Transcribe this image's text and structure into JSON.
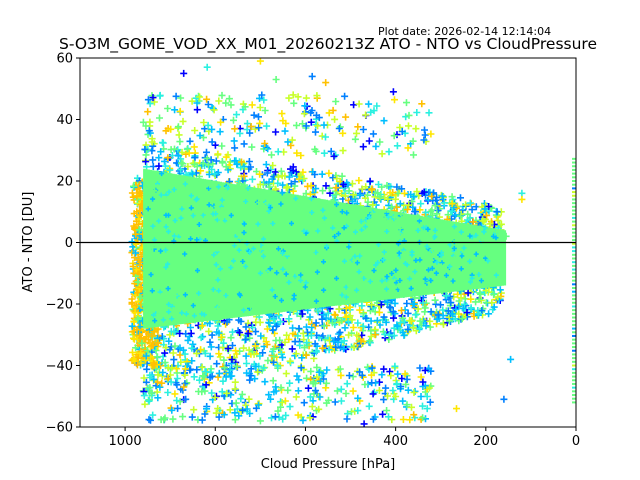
{
  "chart_data": {
    "type": "scatter",
    "title": "S-O3M_GOME_VOD_XX_M01_20260213Z ATO - NTO vs CloudPressure",
    "plot_date": "Plot date: 2026-02-14 12:14:04",
    "xlabel": "Cloud Pressure [hPa]",
    "ylabel": "ATO - NTO [DU]",
    "xlim": [
      1100,
      0
    ],
    "ylim": [
      -60,
      60
    ],
    "x_inverted": true,
    "xticks": [
      1000,
      800,
      600,
      400,
      200,
      0
    ],
    "xtick_labels": [
      "1000",
      "800",
      "600",
      "400",
      "200",
      "0"
    ],
    "yticks": [
      -60,
      -40,
      -20,
      0,
      20,
      40,
      60
    ],
    "ytick_labels": [
      "−60",
      "−40",
      "−20",
      "0",
      "20",
      "40",
      "60"
    ],
    "reference_line_y": 0,
    "marker": "+",
    "colormap": [
      "#0000ff",
      "#0080ff",
      "#00bfff",
      "#2af0e0",
      "#66ff80",
      "#c8ff2a",
      "#ffe600",
      "#ffc000"
    ],
    "dense_core": {
      "x_range": [
        960,
        160
      ],
      "y_range": [
        -25,
        25
      ],
      "color": "#66ff80"
    },
    "clusters": [
      {
        "name": "main-cloud",
        "x_range": [
          975,
          150
        ],
        "y_mean": -5,
        "y_spread_upper": 30,
        "y_spread_lower": 45
      },
      {
        "name": "surface-edge",
        "x_range": [
          990,
          930
        ],
        "y_range": [
          -40,
          20
        ]
      },
      {
        "name": "toa-column",
        "x": 0,
        "y_range": [
          -52,
          28
        ]
      }
    ],
    "outliers": [
      {
        "x": 870,
        "y": 55
      },
      {
        "x": 818,
        "y": 57
      },
      {
        "x": 700,
        "y": 59
      },
      {
        "x": 585,
        "y": 54
      },
      {
        "x": 665,
        "y": 53
      },
      {
        "x": 555,
        "y": 52
      },
      {
        "x": 460,
        "y": 45
      },
      {
        "x": 355,
        "y": 37
      },
      {
        "x": 405,
        "y": 49
      },
      {
        "x": 120,
        "y": 16
      },
      {
        "x": 120,
        "y": 14
      },
      {
        "x": 175,
        "y": 10
      },
      {
        "x": 155,
        "y": 2
      },
      {
        "x": 870,
        "y": -47
      },
      {
        "x": 780,
        "y": -56
      },
      {
        "x": 590,
        "y": -57
      },
      {
        "x": 470,
        "y": -59
      },
      {
        "x": 330,
        "y": -54
      },
      {
        "x": 265,
        "y": -54
      },
      {
        "x": 160,
        "y": -51
      },
      {
        "x": 700,
        "y": -58
      },
      {
        "x": 360,
        "y": -56
      },
      {
        "x": 145,
        "y": -38
      }
    ]
  }
}
